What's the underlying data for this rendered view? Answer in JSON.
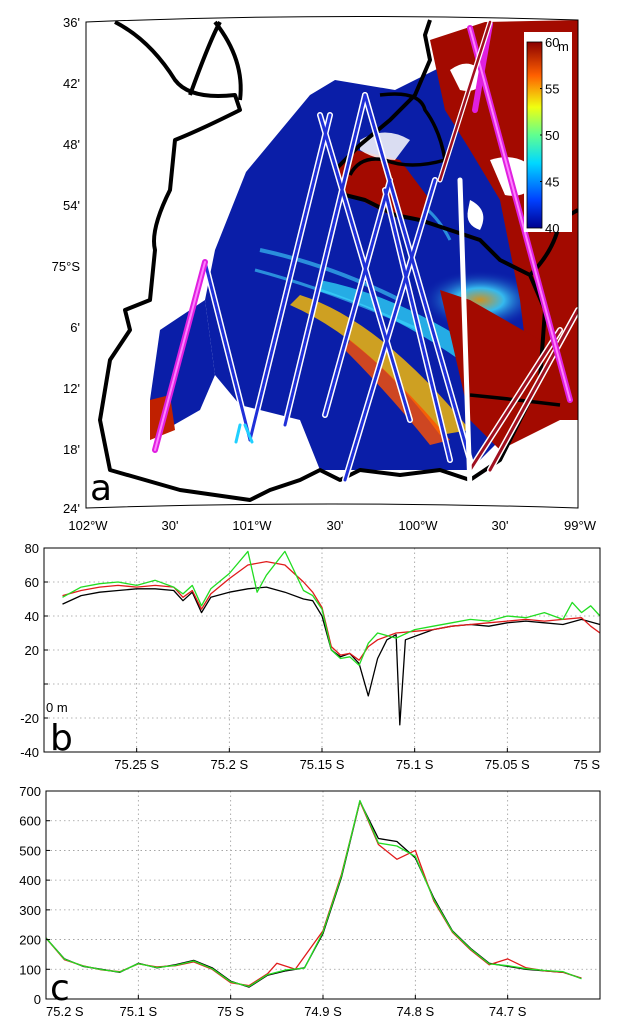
{
  "colors": {
    "black": "#000000",
    "red": "#e01b1b",
    "green": "#22dd22",
    "map_water_low": "#0a1ea8",
    "map_high": "#a30a00",
    "track_white": "#ffffff",
    "track_magenta": "#e020e0"
  },
  "panels": {
    "a": {
      "letter": "a",
      "lat_labels": [
        "36'",
        "42'",
        "48'",
        "54'",
        "75°S",
        "6'",
        "12'",
        "18'",
        "24'"
      ],
      "lon_labels": [
        "102°W",
        "30'",
        "101°W",
        "30'",
        "100°W",
        "30'",
        "99°W"
      ],
      "colorbar": {
        "ticks": [
          "60",
          "55",
          "50",
          "45",
          "40"
        ],
        "unit": "m",
        "min": 40,
        "max": 60
      }
    },
    "b": {
      "letter": "b",
      "ylabel_extra": "0 m"
    },
    "c": {
      "letter": "c"
    }
  },
  "chart_data": [
    {
      "type": "heatmap",
      "panel": "a",
      "xlabel": "",
      "ylabel": "",
      "x_ticks": [
        "102°W",
        "30'",
        "101°W",
        "30'",
        "100°W",
        "30'",
        "99°W"
      ],
      "y_ticks": [
        "36'",
        "42'",
        "48'",
        "54'",
        "75°S",
        "6'",
        "12'",
        "18'",
        "24'"
      ],
      "colorbar": {
        "min": 40,
        "max": 60,
        "unit": "m",
        "ticks": [
          40,
          45,
          50,
          55,
          60
        ]
      }
    },
    {
      "type": "line",
      "panel": "b",
      "xlim": [
        75.3,
        75.0
      ],
      "ylim": [
        -40,
        80
      ],
      "x_ticks": [
        "75.25 S",
        "75.2 S",
        "75.15 S",
        "75.1 S",
        "75.05 S",
        "75 S"
      ],
      "x_tick_values": [
        75.25,
        75.2,
        75.15,
        75.1,
        75.05,
        75.0
      ],
      "y_ticks": [
        "80",
        "60",
        "40",
        "20",
        "0",
        "-20",
        "-40"
      ],
      "y_tick_values": [
        80,
        60,
        40,
        20,
        0,
        -20,
        -40
      ],
      "grid": true,
      "series": [
        {
          "color": "black",
          "points": [
            [
              75.29,
              47
            ],
            [
              75.28,
              52
            ],
            [
              75.27,
              54
            ],
            [
              75.26,
              55
            ],
            [
              75.25,
              56
            ],
            [
              75.24,
              56
            ],
            [
              75.23,
              55
            ],
            [
              75.225,
              49
            ],
            [
              75.22,
              54
            ],
            [
              75.215,
              42
            ],
            [
              75.21,
              51
            ],
            [
              75.2,
              54
            ],
            [
              75.19,
              56
            ],
            [
              75.18,
              57
            ],
            [
              75.17,
              54
            ],
            [
              75.16,
              50
            ],
            [
              75.155,
              49
            ],
            [
              75.15,
              40
            ],
            [
              75.145,
              20
            ],
            [
              75.14,
              16
            ],
            [
              75.135,
              18
            ],
            [
              75.13,
              12
            ],
            [
              75.125,
              -7
            ],
            [
              75.12,
              15
            ],
            [
              75.115,
              26
            ],
            [
              75.11,
              29
            ],
            [
              75.108,
              -24
            ],
            [
              75.105,
              26
            ],
            [
              75.1,
              28
            ],
            [
              75.09,
              32
            ],
            [
              75.08,
              34
            ],
            [
              75.07,
              35
            ],
            [
              75.06,
              34
            ],
            [
              75.05,
              36
            ],
            [
              75.04,
              37
            ],
            [
              75.03,
              36
            ],
            [
              75.02,
              35
            ],
            [
              75.01,
              38
            ],
            [
              75.0,
              35
            ]
          ]
        },
        {
          "color": "red",
          "points": [
            [
              75.29,
              52
            ],
            [
              75.28,
              55
            ],
            [
              75.27,
              57
            ],
            [
              75.26,
              58
            ],
            [
              75.25,
              57
            ],
            [
              75.24,
              58
            ],
            [
              75.23,
              57
            ],
            [
              75.225,
              51
            ],
            [
              75.22,
              55
            ],
            [
              75.215,
              44
            ],
            [
              75.21,
              53
            ],
            [
              75.2,
              62
            ],
            [
              75.19,
              70
            ],
            [
              75.18,
              72
            ],
            [
              75.17,
              70
            ],
            [
              75.16,
              60
            ],
            [
              75.155,
              54
            ],
            [
              75.15,
              45
            ],
            [
              75.145,
              22
            ],
            [
              75.14,
              17
            ],
            [
              75.135,
              18
            ],
            [
              75.13,
              14
            ],
            [
              75.125,
              22
            ],
            [
              75.12,
              26
            ],
            [
              75.11,
              30
            ],
            [
              75.1,
              31
            ],
            [
              75.09,
              32
            ],
            [
              75.08,
              34
            ],
            [
              75.07,
              35
            ],
            [
              75.06,
              36
            ],
            [
              75.05,
              37
            ],
            [
              75.04,
              38
            ],
            [
              75.03,
              37
            ],
            [
              75.02,
              38
            ],
            [
              75.01,
              39
            ],
            [
              75.005,
              34
            ],
            [
              75.0,
              30
            ]
          ]
        },
        {
          "color": "green",
          "points": [
            [
              75.29,
              51
            ],
            [
              75.28,
              57
            ],
            [
              75.27,
              59
            ],
            [
              75.26,
              60
            ],
            [
              75.25,
              58
            ],
            [
              75.24,
              61
            ],
            [
              75.23,
              57
            ],
            [
              75.225,
              53
            ],
            [
              75.22,
              58
            ],
            [
              75.215,
              46
            ],
            [
              75.21,
              56
            ],
            [
              75.2,
              65
            ],
            [
              75.19,
              78
            ],
            [
              75.185,
              54
            ],
            [
              75.18,
              64
            ],
            [
              75.17,
              78
            ],
            [
              75.16,
              55
            ],
            [
              75.155,
              52
            ],
            [
              75.15,
              44
            ],
            [
              75.145,
              20
            ],
            [
              75.14,
              15
            ],
            [
              75.135,
              16
            ],
            [
              75.13,
              11
            ],
            [
              75.125,
              24
            ],
            [
              75.12,
              30
            ],
            [
              75.11,
              27
            ],
            [
              75.1,
              32
            ],
            [
              75.09,
              34
            ],
            [
              75.08,
              36
            ],
            [
              75.07,
              38
            ],
            [
              75.06,
              37
            ],
            [
              75.05,
              40
            ],
            [
              75.04,
              39
            ],
            [
              75.03,
              42
            ],
            [
              75.02,
              38
            ],
            [
              75.015,
              48
            ],
            [
              75.01,
              42
            ],
            [
              75.005,
              46
            ],
            [
              75.0,
              40
            ]
          ]
        }
      ]
    },
    {
      "type": "line",
      "panel": "c",
      "xlim": [
        75.2,
        74.6
      ],
      "ylim": [
        0,
        700
      ],
      "x_ticks": [
        "75.2 S",
        "75.1 S",
        "75 S",
        "74.9 S",
        "74.8 S",
        "74.7 S"
      ],
      "x_tick_values": [
        75.2,
        75.1,
        75.0,
        74.9,
        74.8,
        74.7
      ],
      "y_ticks": [
        "700",
        "600",
        "500",
        "400",
        "300",
        "200",
        "100",
        "0"
      ],
      "y_tick_values": [
        700,
        600,
        500,
        400,
        300,
        200,
        100,
        0
      ],
      "grid": true,
      "series": [
        {
          "color": "black",
          "points": [
            [
              75.2,
              205
            ],
            [
              75.18,
              135
            ],
            [
              75.16,
              110
            ],
            [
              75.14,
              100
            ],
            [
              75.12,
              90
            ],
            [
              75.1,
              120
            ],
            [
              75.08,
              105
            ],
            [
              75.06,
              115
            ],
            [
              75.04,
              130
            ],
            [
              75.02,
              105
            ],
            [
              75.0,
              60
            ],
            [
              74.98,
              40
            ],
            [
              74.96,
              80
            ],
            [
              74.94,
              95
            ],
            [
              74.92,
              105
            ],
            [
              74.9,
              220
            ],
            [
              74.88,
              410
            ],
            [
              74.86,
              665
            ],
            [
              74.84,
              540
            ],
            [
              74.82,
              530
            ],
            [
              74.8,
              475
            ],
            [
              74.78,
              340
            ],
            [
              74.76,
              230
            ],
            [
              74.74,
              170
            ],
            [
              74.72,
              120
            ],
            [
              74.7,
              110
            ],
            [
              74.68,
              100
            ],
            [
              74.66,
              95
            ],
            [
              74.64,
              90
            ],
            [
              74.62,
              70
            ]
          ]
        },
        {
          "color": "red",
          "points": [
            [
              75.2,
              205
            ],
            [
              75.18,
              132
            ],
            [
              75.16,
              112
            ],
            [
              75.14,
              98
            ],
            [
              75.12,
              92
            ],
            [
              75.1,
              118
            ],
            [
              75.08,
              108
            ],
            [
              75.06,
              112
            ],
            [
              75.04,
              125
            ],
            [
              75.02,
              100
            ],
            [
              75.0,
              55
            ],
            [
              74.98,
              45
            ],
            [
              74.96,
              85
            ],
            [
              74.95,
              120
            ],
            [
              74.93,
              100
            ],
            [
              74.9,
              230
            ],
            [
              74.88,
              420
            ],
            [
              74.86,
              665
            ],
            [
              74.84,
              520
            ],
            [
              74.82,
              470
            ],
            [
              74.8,
              500
            ],
            [
              74.78,
              330
            ],
            [
              74.76,
              225
            ],
            [
              74.74,
              165
            ],
            [
              74.72,
              115
            ],
            [
              74.7,
              135
            ],
            [
              74.68,
              105
            ],
            [
              74.66,
              95
            ],
            [
              74.64,
              90
            ],
            [
              74.62,
              70
            ]
          ]
        },
        {
          "color": "green",
          "points": [
            [
              75.2,
              205
            ],
            [
              75.18,
              134
            ],
            [
              75.16,
              111
            ],
            [
              75.14,
              99
            ],
            [
              75.12,
              91
            ],
            [
              75.1,
              119
            ],
            [
              75.08,
              106
            ],
            [
              75.06,
              113
            ],
            [
              75.04,
              128
            ],
            [
              75.02,
              102
            ],
            [
              75.0,
              58
            ],
            [
              74.98,
              42
            ],
            [
              74.96,
              82
            ],
            [
              74.94,
              98
            ],
            [
              74.92,
              104
            ],
            [
              74.9,
              225
            ],
            [
              74.88,
              415
            ],
            [
              74.86,
              668
            ],
            [
              74.84,
              525
            ],
            [
              74.82,
              515
            ],
            [
              74.8,
              480
            ],
            [
              74.78,
              335
            ],
            [
              74.76,
              228
            ],
            [
              74.74,
              168
            ],
            [
              74.72,
              118
            ],
            [
              74.7,
              112
            ],
            [
              74.68,
              102
            ],
            [
              74.66,
              96
            ],
            [
              74.64,
              92
            ],
            [
              74.62,
              68
            ]
          ]
        }
      ]
    }
  ]
}
